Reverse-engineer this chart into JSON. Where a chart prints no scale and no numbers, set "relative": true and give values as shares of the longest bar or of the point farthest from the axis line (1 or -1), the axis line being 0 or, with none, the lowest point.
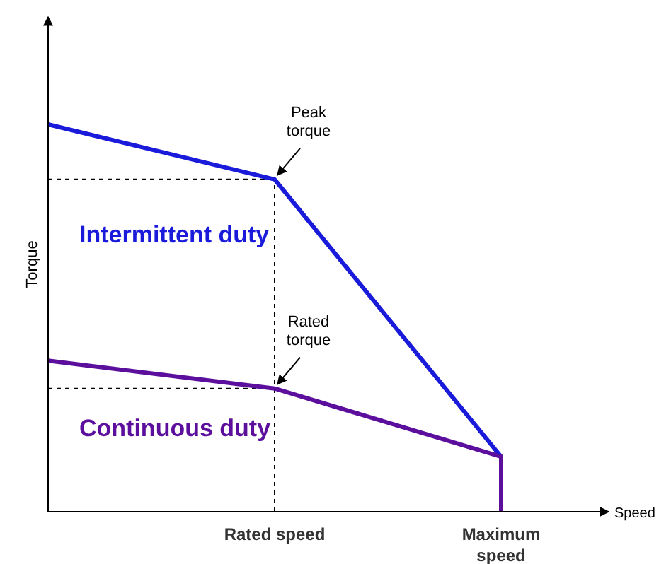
{
  "chart_data": {
    "type": "line",
    "relative": true,
    "xlabel": "Speed",
    "ylabel": "Torque",
    "categories": [
      null,
      "Rated speed",
      "Maximum speed"
    ],
    "series": [
      {
        "name": "Intermittent duty",
        "color": "#1a1adb",
        "values": [
          1,
          0.858,
          0.142
        ]
      },
      {
        "name": "Continuous duty",
        "color": "#5c0f9c",
        "x": [
          null,
          "Rated speed",
          "Maximum speed",
          "Maximum speed"
        ],
        "values": [
          0.39,
          0.318,
          0.142,
          0
        ]
      }
    ],
    "ref_lines": [
      {
        "axis": "y",
        "value": 0.858,
        "color": "#000000",
        "line_style": "dotted"
      },
      {
        "axis": "y",
        "value": 0.318,
        "color": "#000000",
        "line_style": "dotted"
      },
      {
        "axis": "x",
        "value": "Rated speed",
        "color": "#000000",
        "line_style": "dotted"
      }
    ],
    "annotations": [
      {
        "text": "Peak torque",
        "x": "Rated speed",
        "y": 0.858
      },
      {
        "text": "Rated torque",
        "x": "Rated speed",
        "y": 0.318
      }
    ],
    "marker": "none",
    "line_style": "solid"
  }
}
